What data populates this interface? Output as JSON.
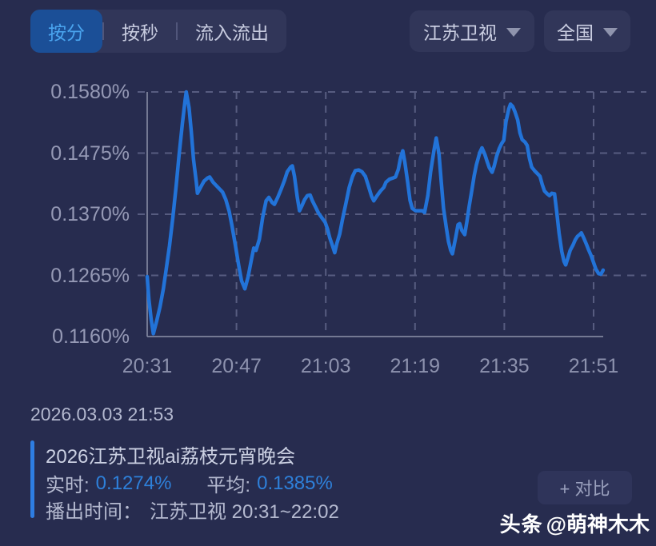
{
  "header": {
    "tabs": [
      {
        "label": "按分",
        "active": true
      },
      {
        "label": "按秒",
        "active": false
      },
      {
        "label": "流入流出",
        "active": false
      }
    ],
    "channel_dropdown": {
      "label": "江苏卫视"
    },
    "region_dropdown": {
      "label": "全国"
    }
  },
  "chart_data": {
    "type": "line",
    "title": "",
    "grid": "dashed",
    "legend_position": "none",
    "ylim": [
      0.116,
      0.158
    ],
    "y_ticks": {
      "labels": [
        "0.1580%",
        "0.1475%",
        "0.1370%",
        "0.1265%",
        "0.1160%"
      ],
      "values": [
        0.158,
        0.1475,
        0.137,
        0.1265,
        0.116
      ]
    },
    "x_ticks": {
      "labels": [
        "20:31",
        "20:47",
        "21:03",
        "21:19",
        "21:35",
        "21:51"
      ],
      "minutes": [
        0,
        16,
        32,
        48,
        64,
        80
      ]
    },
    "series": [
      {
        "color": "#2273d8",
        "points": [
          [
            0,
            0.1263
          ],
          [
            0.3,
            0.1224
          ],
          [
            0.7,
            0.119
          ],
          [
            1.1,
            0.1165
          ],
          [
            1.7,
            0.1187
          ],
          [
            2.3,
            0.1211
          ],
          [
            2.9,
            0.1242
          ],
          [
            3.4,
            0.1275
          ],
          [
            4,
            0.1316
          ],
          [
            4.6,
            0.1365
          ],
          [
            5.2,
            0.142
          ],
          [
            5.7,
            0.1471
          ],
          [
            6.3,
            0.1525
          ],
          [
            6.8,
            0.1566
          ],
          [
            7,
            0.158
          ],
          [
            7.5,
            0.1553
          ],
          [
            7.9,
            0.1512
          ],
          [
            8.3,
            0.1464
          ],
          [
            8.8,
            0.1425
          ],
          [
            9,
            0.1406
          ],
          [
            9.6,
            0.1417
          ],
          [
            10.2,
            0.1427
          ],
          [
            10.8,
            0.1432
          ],
          [
            11.2,
            0.1434
          ],
          [
            11.8,
            0.1425
          ],
          [
            12.4,
            0.1419
          ],
          [
            12.9,
            0.1414
          ],
          [
            13.5,
            0.1408
          ],
          [
            14.1,
            0.1395
          ],
          [
            14.7,
            0.1375
          ],
          [
            15.2,
            0.135
          ],
          [
            15.8,
            0.1317
          ],
          [
            16.4,
            0.1282
          ],
          [
            16.9,
            0.1256
          ],
          [
            17.5,
            0.1242
          ],
          [
            18.1,
            0.1263
          ],
          [
            18.7,
            0.1293
          ],
          [
            19.1,
            0.1312
          ],
          [
            19.5,
            0.1308
          ],
          [
            20.1,
            0.1327
          ],
          [
            20.7,
            0.1365
          ],
          [
            21.3,
            0.1393
          ],
          [
            21.8,
            0.1399
          ],
          [
            22.4,
            0.139
          ],
          [
            22.8,
            0.1387
          ],
          [
            23.4,
            0.1399
          ],
          [
            24,
            0.1413
          ],
          [
            24.6,
            0.1428
          ],
          [
            25.1,
            0.1443
          ],
          [
            25.7,
            0.1451
          ],
          [
            26,
            0.1453
          ],
          [
            26.4,
            0.1435
          ],
          [
            26.9,
            0.1399
          ],
          [
            27.3,
            0.1376
          ],
          [
            27.7,
            0.1384
          ],
          [
            28.2,
            0.1395
          ],
          [
            28.7,
            0.1402
          ],
          [
            29.2,
            0.1403
          ],
          [
            29.6,
            0.1393
          ],
          [
            30.2,
            0.1382
          ],
          [
            30.7,
            0.1372
          ],
          [
            31.3,
            0.1364
          ],
          [
            31.9,
            0.1356
          ],
          [
            32.3,
            0.1345
          ],
          [
            32.7,
            0.133
          ],
          [
            33.2,
            0.1316
          ],
          [
            33.6,
            0.1304
          ],
          [
            34,
            0.132
          ],
          [
            34.5,
            0.1336
          ],
          [
            35,
            0.1361
          ],
          [
            35.6,
            0.1388
          ],
          [
            36.2,
            0.1416
          ],
          [
            36.8,
            0.1435
          ],
          [
            37.3,
            0.1445
          ],
          [
            37.9,
            0.1446
          ],
          [
            38.5,
            0.1443
          ],
          [
            39.1,
            0.1435
          ],
          [
            39.6,
            0.142
          ],
          [
            40.2,
            0.1401
          ],
          [
            40.6,
            0.1393
          ],
          [
            41.2,
            0.1402
          ],
          [
            41.8,
            0.141
          ],
          [
            42.4,
            0.1416
          ],
          [
            42.8,
            0.1425
          ],
          [
            43.4,
            0.143
          ],
          [
            44,
            0.1432
          ],
          [
            44.5,
            0.1434
          ],
          [
            45,
            0.1447
          ],
          [
            45.4,
            0.1467
          ],
          [
            45.8,
            0.1479
          ],
          [
            46.2,
            0.1458
          ],
          [
            46.7,
            0.1424
          ],
          [
            47.1,
            0.1394
          ],
          [
            47.5,
            0.138
          ],
          [
            48.1,
            0.1376
          ],
          [
            48.7,
            0.1376
          ],
          [
            49.3,
            0.1376
          ],
          [
            49.7,
            0.1373
          ],
          [
            50.3,
            0.1402
          ],
          [
            50.8,
            0.1443
          ],
          [
            51.4,
            0.148
          ],
          [
            51.8,
            0.1501
          ],
          [
            52.3,
            0.1473
          ],
          [
            52.7,
            0.1425
          ],
          [
            53.1,
            0.138
          ],
          [
            53.6,
            0.1347
          ],
          [
            54,
            0.1323
          ],
          [
            54.4,
            0.1308
          ],
          [
            54.7,
            0.1302
          ],
          [
            55.3,
            0.1331
          ],
          [
            55.7,
            0.1352
          ],
          [
            56,
            0.1354
          ],
          [
            56.4,
            0.1342
          ],
          [
            56.9,
            0.1335
          ],
          [
            57.3,
            0.1358
          ],
          [
            57.7,
            0.1384
          ],
          [
            58.2,
            0.1412
          ],
          [
            58.6,
            0.1436
          ],
          [
            59,
            0.1455
          ],
          [
            59.6,
            0.1476
          ],
          [
            60,
            0.1484
          ],
          [
            60.5,
            0.1473
          ],
          [
            60.9,
            0.1461
          ],
          [
            61.3,
            0.145
          ],
          [
            61.8,
            0.1442
          ],
          [
            62.2,
            0.1453
          ],
          [
            62.6,
            0.1469
          ],
          [
            63.1,
            0.1483
          ],
          [
            63.5,
            0.1491
          ],
          [
            63.9,
            0.1497
          ],
          [
            64.3,
            0.1529
          ],
          [
            64.8,
            0.1551
          ],
          [
            65.1,
            0.1559
          ],
          [
            65.5,
            0.1555
          ],
          [
            65.9,
            0.1546
          ],
          [
            66.4,
            0.1532
          ],
          [
            66.8,
            0.151
          ],
          [
            67.2,
            0.1498
          ],
          [
            67.7,
            0.1494
          ],
          [
            68.1,
            0.1488
          ],
          [
            68.5,
            0.1466
          ],
          [
            68.9,
            0.1451
          ],
          [
            69.4,
            0.1445
          ],
          [
            69.9,
            0.144
          ],
          [
            70.4,
            0.1435
          ],
          [
            70.8,
            0.1421
          ],
          [
            71.2,
            0.141
          ],
          [
            71.7,
            0.1405
          ],
          [
            72.1,
            0.1402
          ],
          [
            72.5,
            0.1406
          ],
          [
            73,
            0.1405
          ],
          [
            73.4,
            0.1373
          ],
          [
            73.8,
            0.1338
          ],
          [
            74.3,
            0.1306
          ],
          [
            74.7,
            0.1289
          ],
          [
            75,
            0.1283
          ],
          [
            75.4,
            0.1295
          ],
          [
            75.8,
            0.1308
          ],
          [
            76.3,
            0.1317
          ],
          [
            76.7,
            0.1326
          ],
          [
            77.1,
            0.1332
          ],
          [
            77.6,
            0.1336
          ],
          [
            77.8,
            0.1338
          ],
          [
            78.3,
            0.1328
          ],
          [
            78.7,
            0.1319
          ],
          [
            79.1,
            0.1309
          ],
          [
            79.6,
            0.1298
          ],
          [
            80,
            0.1287
          ],
          [
            80.4,
            0.1276
          ],
          [
            80.9,
            0.1268
          ],
          [
            81.3,
            0.1267
          ],
          [
            81.6,
            0.1272
          ],
          [
            81.7,
            0.1274
          ]
        ]
      }
    ]
  },
  "footer": {
    "timestamp": "2026.03.03 21:53",
    "program": {
      "title": "2026江苏卫视ai荔枝元宵晚会",
      "realtime_label": "实时:",
      "realtime_value": "0.1274%",
      "average_label": "平均:",
      "average_value": "0.1385%",
      "broadcast_label": "播出时间：",
      "broadcast_value": "江苏卫视 20:31~22:02"
    },
    "compare_button": "+ 对比",
    "watermark": {
      "badge": "头条",
      "handle": "@萌神木木"
    }
  },
  "colors": {
    "background": "#272c4f",
    "line_blue": "#2273d8",
    "value_blue": "#2e80da",
    "accent_bar_blue": "#2e7de2",
    "tab_active_bg": "#1b4f97",
    "tab_active_text": "#4aa4ee"
  }
}
